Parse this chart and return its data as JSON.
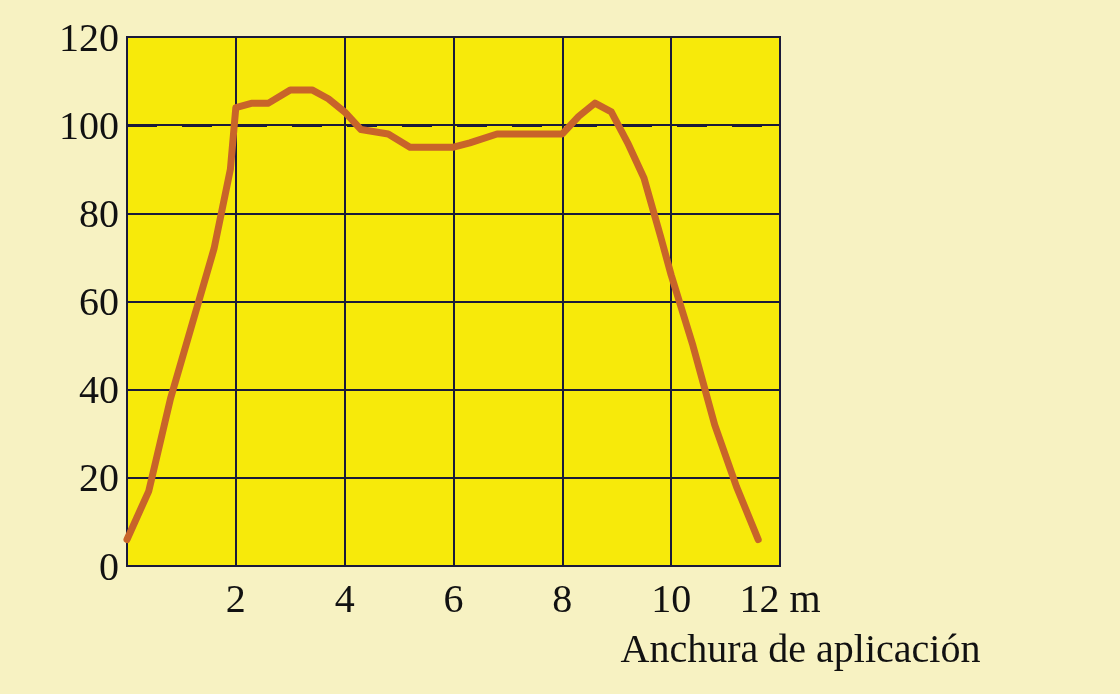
{
  "chart_data": {
    "type": "line",
    "xlabel": "Anchura de aplicación",
    "x": [
      0,
      0.4,
      0.8,
      1.2,
      1.6,
      1.9,
      2.0,
      2.3,
      2.6,
      3.0,
      3.4,
      3.7,
      4.0,
      4.3,
      4.8,
      5.2,
      5.6,
      6.0,
      6.3,
      6.8,
      7.2,
      7.6,
      8.0,
      8.3,
      8.6,
      8.9,
      9.2,
      9.5,
      9.8,
      10.0,
      10.4,
      10.8,
      11.2,
      11.6
    ],
    "series": [
      {
        "color": "#c8642a",
        "values": [
          6,
          17,
          38,
          55,
          72,
          90,
          104,
          105,
          105,
          108,
          108,
          106,
          103,
          99,
          98,
          95,
          95,
          95,
          96,
          98,
          98,
          98,
          98,
          102,
          105,
          103,
          96,
          88,
          75,
          66,
          50,
          32,
          18,
          6
        ]
      }
    ],
    "xlim": [
      0,
      12
    ],
    "xticks": [
      {
        "value": 0,
        "label": null
      },
      2,
      4,
      6,
      8,
      10,
      {
        "value": 12,
        "label": "12 m"
      }
    ],
    "ylim": [
      0,
      120
    ],
    "yticks": [
      0,
      20,
      40,
      60,
      80,
      100,
      120
    ],
    "ref_lines": [
      {
        "axis": "y",
        "value": 100,
        "line_style": "dashed",
        "color": "#1a1a3a"
      }
    ],
    "grid": true,
    "marker": "none",
    "line_style": "solid"
  }
}
